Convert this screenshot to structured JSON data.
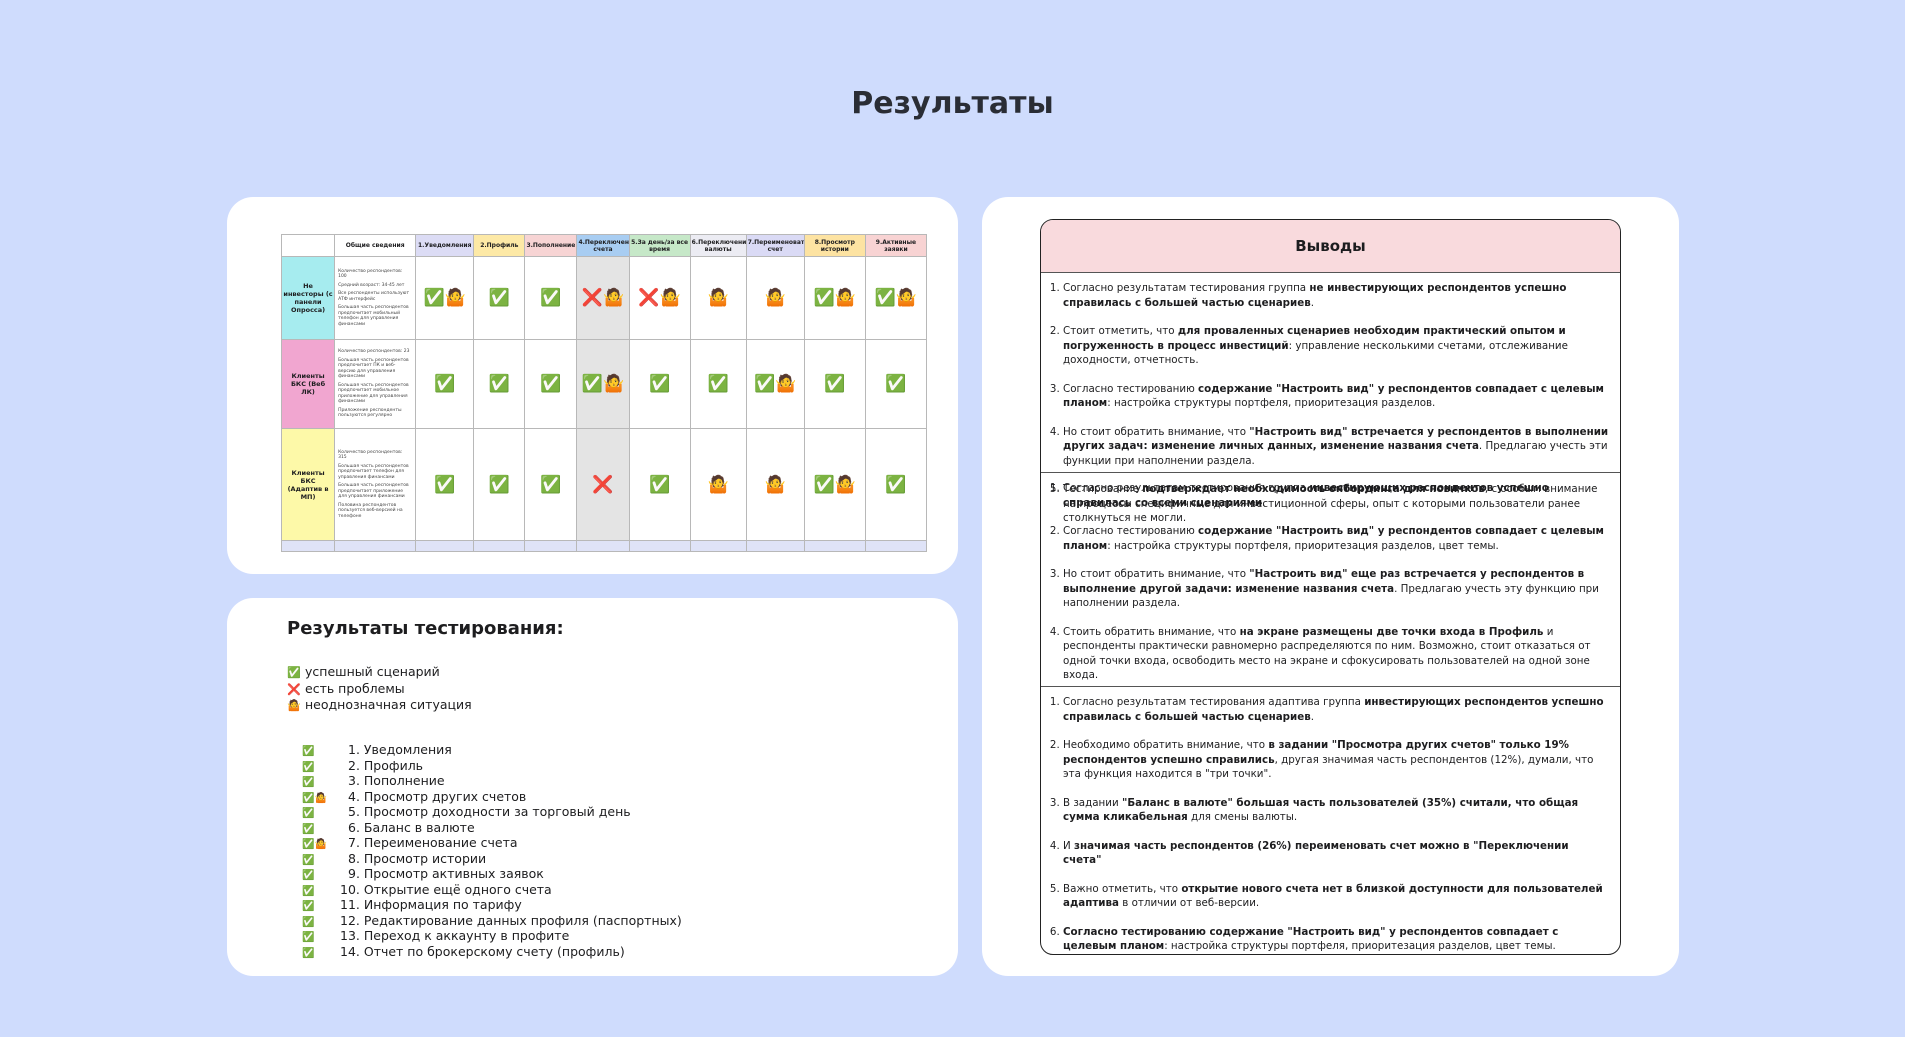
{
  "title": "Результаты",
  "table": {
    "headers": [
      "Общие сведения",
      "1.Уведомления",
      "2.Профиль",
      "3.Пополнение",
      "4.Переключение счета",
      "5.За день/за все время",
      "6.Переключение валюты",
      "7.Переименовать счет",
      "8.Просмотр истории",
      "9.Активные заявки"
    ],
    "rows": [
      {
        "label": "Не инвесторы (с панели Опросса)",
        "info": [
          "Количество респондентов: 100",
          "Средний возраст: 34-45 лет",
          "Все респонденты используют АТФ интерфейс",
          "Большая часть респондентов предпочитает мобильный телефон для управления финансами"
        ],
        "cells": [
          "✅🤷",
          "✅",
          "✅",
          "❌🤷",
          "❌🤷",
          "🤷",
          "🤷",
          "✅🤷",
          "✅🤷"
        ]
      },
      {
        "label": "Клиенты БКС (Веб ЛК)",
        "info": [
          "Количество респондентов: 23",
          "Большая часть респондентов предпочитает ПК и веб-версию для управления финансами",
          "Большая часть респондентов предпочитает мобильное приложение для управления финансами",
          "Приложение респонденты пользуются регулярно"
        ],
        "cells": [
          "✅",
          "✅",
          "✅",
          "✅🤷",
          "✅",
          "✅",
          "✅🤷",
          "✅",
          "✅"
        ]
      },
      {
        "label": "Клиенты БКС (Адаптив в МП)",
        "info": [
          "Количество респондентов: 315",
          "Большая часть респондентов предпочитает телефон для управления финансами",
          "Большая часть респондентов предпочитает приложение для управления финансами",
          "Половина респондентов пользуется веб-версией на телефоне"
        ],
        "cells": [
          "✅",
          "✅",
          "✅",
          "❌",
          "✅",
          "🤷",
          "🤷",
          "✅🤷",
          "✅"
        ]
      }
    ]
  },
  "legend": {
    "title": "Результаты тестирования:",
    "items": [
      {
        "icon": "✅",
        "text": "успешный сценарий"
      },
      {
        "icon": "❌",
        "text": "есть проблемы"
      },
      {
        "icon": "🤷",
        "text": "неоднозначная ситуация"
      }
    ]
  },
  "scenarios": [
    {
      "icon": "✅",
      "text": "1. Уведомления"
    },
    {
      "icon": "✅",
      "text": "2. Профиль"
    },
    {
      "icon": "✅",
      "text": "3. Пополнение"
    },
    {
      "icon": "✅🤷",
      "text": "4. Просмотр других счетов"
    },
    {
      "icon": "✅",
      "text": "5. Просмотр доходности за торговый день"
    },
    {
      "icon": "✅",
      "text": "6. Баланс в валюте"
    },
    {
      "icon": "✅🤷",
      "text": "7. Переименование счета"
    },
    {
      "icon": "✅",
      "text": "8. Просмотр истории"
    },
    {
      "icon": "✅",
      "text": "9. Просмотр активных заявок"
    },
    {
      "icon": "✅",
      "text": "10. Открытие ещё одного счета"
    },
    {
      "icon": "✅",
      "text": "11. Информация по тарифу"
    },
    {
      "icon": "✅",
      "text": "12. Редактирование данных профиля (паспортных)"
    },
    {
      "icon": "✅",
      "text": "13. Переход к аккаунту в профите"
    },
    {
      "icon": "✅",
      "text": "14. Отчет по брокерскому счету (профиль)"
    }
  ],
  "conclusions": {
    "title": "Выводы",
    "sections": [
      [
        [
          {
            "text": "Согласно результатам тестирования группа "
          },
          {
            "text": "не инвестирующих респондентов успешно справилась с большей частью сценариев",
            "bold": true
          },
          {
            "text": "."
          }
        ],
        [
          {
            "text": "Стоит отметить, что "
          },
          {
            "text": "для проваленных сценариев необходим практический опытом и погруженность в процесс инвестиций",
            "bold": true
          },
          {
            "text": ": управление несколькими счетами, отслеживание доходности, отчетность."
          }
        ],
        [
          {
            "text": "Согласно тестированию "
          },
          {
            "text": "содержание \"Настроить вид\" у респондентов совпадает с целевым планом",
            "bold": true
          },
          {
            "text": ": настройка структуры портфеля, приоритезация разделов."
          }
        ],
        [
          {
            "text": "Но стоит обратить внимание, что "
          },
          {
            "text": "\"Настроить вид\" встречается у респондентов в выполнении других задач: изменение личных данных, изменение названия счета",
            "bold": true
          },
          {
            "text": ". Предлагаю учесть эти функции при наполнении раздела."
          }
        ],
        [
          {
            "text": "Тестирование "
          },
          {
            "text": "подтверждает необходимость онбординга для новичков",
            "bold": true
          },
          {
            "text": ", с особым внимание на процессы специфичные для инвестиционной сферы, опыт с которыми пользователи ранее столкнуться не могли."
          }
        ]
      ],
      [
        [
          {
            "text": "Согласно результатам тестирования группа "
          },
          {
            "text": "инвестирующих респондентов успешно справилась со всеми сценариями",
            "bold": true
          },
          {
            "text": "."
          }
        ],
        [
          {
            "text": "Согласно тестированию "
          },
          {
            "text": "содержание \"Настроить вид\" у респондентов совпадает с целевым планом",
            "bold": true
          },
          {
            "text": ": настройка структуры портфеля, приоритезация разделов, цвет темы."
          }
        ],
        [
          {
            "text": "Но стоит обратить внимание, что "
          },
          {
            "text": "\"Настроить вид\" еще раз встречается у респондентов в выполнение другой задачи: изменение названия счета",
            "bold": true
          },
          {
            "text": ". Предлагаю учесть эту функцию при наполнении раздела."
          }
        ],
        [
          {
            "text": "Стоить обратить внимание, что "
          },
          {
            "text": "на экране размещены две точки входа в Профиль",
            "bold": true
          },
          {
            "text": " и респонденты практически равномерно распределяются по ним. Возможно, стоит отказаться от одной точки входа, освободить место на экране и сфокусировать пользователей на одной зоне входа."
          }
        ]
      ],
      [
        [
          {
            "text": "Согласно результатам тестирования адаптива группа "
          },
          {
            "text": "инвестирующих респондентов успешно справилась с большей частью сценариев",
            "bold": true
          },
          {
            "text": "."
          }
        ],
        [
          {
            "text": "Необходимо обратить внимание, что "
          },
          {
            "text": "в задании \"Просмотра других счетов\" только 19% респондентов успешно справились",
            "bold": true
          },
          {
            "text": ", другая значимая часть респондентов (12%), думали, что эта функция находится в \"три точки\"."
          }
        ],
        [
          {
            "text": "В задании "
          },
          {
            "text": "\"Баланс в валюте\" большая часть пользователей (35%) считали, что общая сумма кликабельная",
            "bold": true
          },
          {
            "text": " для смены валюты."
          }
        ],
        [
          {
            "text": "И "
          },
          {
            "text": "значимая часть респондентов (26%) переименовать счет можно в \"Переключении счета\"",
            "bold": true
          }
        ],
        [
          {
            "text": "Важно отметить, что "
          },
          {
            "text": "открытие нового счета нет в близкой доступности для пользователей адаптива",
            "bold": true
          },
          {
            "text": " в отличии от веб-версии."
          }
        ],
        [
          {
            "text": "Согласно тестированию содержание \"Настроить вид\" у респондентов совпадает с целевым планом",
            "bold": true
          },
          {
            "text": ": настройка структуры портфеля, приоритезация разделов, цвет темы."
          }
        ]
      ]
    ]
  }
}
